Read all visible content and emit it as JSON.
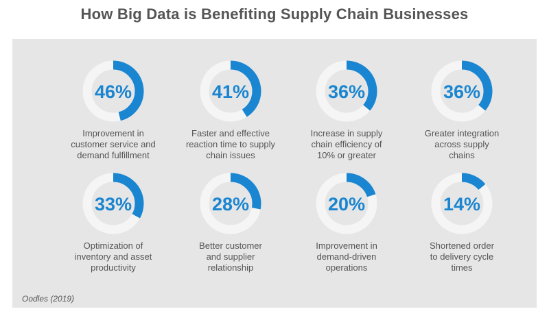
{
  "title": "How Big Data is Benefiting Supply Chain Businesses",
  "source": "Oodles (2019)",
  "colors": {
    "accent": "#1a85d1",
    "ring_track": "#f5f5f5",
    "panel": "#e6e6e6",
    "text": "#555555"
  },
  "chart_data": {
    "type": "pie",
    "variant": "donut-gauges",
    "items": [
      {
        "value": 46,
        "display": "46%",
        "label": "Improvement in\ncustomer service and\ndemand fulfillment"
      },
      {
        "value": 41,
        "display": "41%",
        "label": "Faster and effective\nreaction time to supply\nchain issues"
      },
      {
        "value": 36,
        "display": "36%",
        "label": "Increase in supply\nchain efficiency of\n10% or greater"
      },
      {
        "value": 36,
        "display": "36%",
        "label": "Greater integration\nacross supply\nchains"
      },
      {
        "value": 33,
        "display": "33%",
        "label": "Optimization of\ninventory and asset\nproductivity"
      },
      {
        "value": 28,
        "display": "28%",
        "label": "Better customer\nand supplier\nrelationship"
      },
      {
        "value": 20,
        "display": "20%",
        "label": "Improvement in\ndemand-driven\noperations"
      },
      {
        "value": 14,
        "display": "14%",
        "label": "Shortened order\nto delivery cycle\ntimes"
      }
    ]
  }
}
